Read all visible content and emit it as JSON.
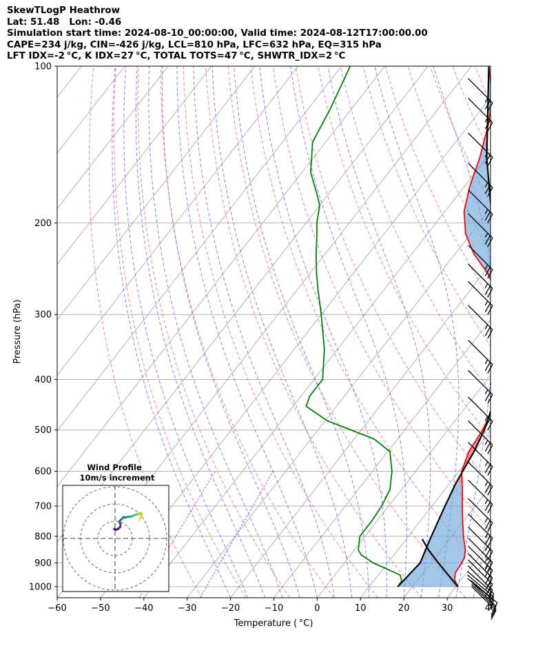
{
  "header": {
    "line1": "SkewTLogP Heathrow",
    "line2": "Lat: 51.48   Lon: -0.46",
    "line3": "Simulation start time: 2024-08-10_00:00:00, Valid time: 2024-08-12T17:00:00.00",
    "line4": "CAPE=234 j/kg, CIN=-426 j/kg, LCL=810 hPa, LFC=632 hPa, EQ=315 hPa",
    "line5": "LFT IDX=-2 °C, K IDX=27 °C, TOTAL TOTS=47 °C, SHWTR_IDX=2 °C"
  },
  "colors": {
    "temperature": "#ff0000",
    "dewpoint": "#008000",
    "parcel": "#000000",
    "cape_fill": "#e06666",
    "cin_fill": "#6fa8dc",
    "dry_adiabat": "#ff6666",
    "moist_adiabat": "#6666ff",
    "mixing_ratio": "#9933cc",
    "isotherm": "#aaaaaa",
    "grid": "#b0b0b0"
  },
  "chart_data": {
    "type": "skewt",
    "title": "SkewTLogP Heathrow",
    "xlabel": "Temperature ( °C)",
    "ylabel": "Pressure (hPa)",
    "xlim": [
      -60,
      40
    ],
    "ylim": [
      1050,
      100
    ],
    "xticks": [
      "−60",
      "−50",
      "−40",
      "−30",
      "−20",
      "−10",
      "0",
      "10",
      "20",
      "30",
      "40"
    ],
    "xtick_values": [
      -60,
      -50,
      -40,
      -30,
      -20,
      -10,
      0,
      10,
      20,
      30,
      40
    ],
    "yticks": [
      100,
      200,
      300,
      400,
      500,
      600,
      700,
      800,
      900,
      1000
    ],
    "temperature": {
      "name": "Temperature",
      "points": [
        [
          1000,
          30.5
        ],
        [
          970,
          28.5
        ],
        [
          940,
          27.4
        ],
        [
          910,
          27.2
        ],
        [
          880,
          26.8
        ],
        [
          850,
          25.6
        ],
        [
          800,
          22.7
        ],
        [
          750,
          19.9
        ],
        [
          700,
          17.0
        ],
        [
          650,
          14.0
        ],
        [
          600,
          10.6
        ],
        [
          550,
          8.7
        ],
        [
          500,
          8.0
        ],
        [
          450,
          6.5
        ],
        [
          400,
          3.5
        ],
        [
          350,
          -0.6
        ],
        [
          300,
          -7.0
        ],
        [
          270,
          -14.0
        ],
        [
          250,
          -19.0
        ],
        [
          230,
          -25.5
        ],
        [
          210,
          -31.2
        ],
        [
          190,
          -35.6
        ],
        [
          170,
          -38.8
        ],
        [
          150,
          -41.6
        ],
        [
          130,
          -45.5
        ],
        [
          115,
          -49.5
        ],
        [
          100,
          -56.0
        ]
      ]
    },
    "dewpoint": {
      "name": "Dewpoint",
      "points": [
        [
          1000,
          16.6
        ],
        [
          975,
          16.5
        ],
        [
          950,
          15.1
        ],
        [
          930,
          11.8
        ],
        [
          900,
          6.7
        ],
        [
          870,
          2.6
        ],
        [
          850,
          0.9
        ],
        [
          800,
          -1.2
        ],
        [
          750,
          -1.2
        ],
        [
          700,
          -1.6
        ],
        [
          650,
          -2.7
        ],
        [
          600,
          -5.5
        ],
        [
          550,
          -9.5
        ],
        [
          520,
          -15.5
        ],
        [
          480,
          -29.5
        ],
        [
          450,
          -37.0
        ],
        [
          430,
          -38.0
        ],
        [
          400,
          -38.0
        ],
        [
          350,
          -43.0
        ],
        [
          300,
          -50.0
        ],
        [
          270,
          -55.0
        ],
        [
          250,
          -58.5
        ],
        [
          230,
          -62.0
        ],
        [
          210,
          -65.5
        ],
        [
          200,
          -67.5
        ],
        [
          185,
          -70.0
        ],
        [
          175,
          -73.0
        ],
        [
          160,
          -78.0
        ],
        [
          140,
          -83.0
        ],
        [
          120,
          -85.0
        ],
        [
          100,
          -88.0
        ]
      ]
    },
    "parcel": {
      "name": "Parcel profile",
      "points": [
        [
          1000,
          16.6
        ],
        [
          900,
          17.5
        ],
        [
          810,
          15.5
        ],
        [
          700,
          13.0
        ],
        [
          632,
          11.4
        ],
        [
          550,
          9.9
        ],
        [
          500,
          8.4
        ],
        [
          450,
          6.0
        ],
        [
          400,
          2.6
        ],
        [
          350,
          -1.9
        ],
        [
          315,
          -5.5
        ],
        [
          300,
          -7.0
        ],
        [
          250,
          -16.0
        ],
        [
          200,
          -27.0
        ],
        [
          150,
          -40.0
        ],
        [
          100,
          -56.0
        ]
      ]
    },
    "parcel_dry": {
      "name": "Surface parcel dry ascent",
      "points": [
        [
          1000,
          30.5
        ],
        [
          950,
          26.2
        ],
        [
          900,
          21.7
        ],
        [
          850,
          17.1
        ],
        [
          810,
          13.7
        ]
      ]
    },
    "lcl_hpa": 810,
    "lfc_hpa": 632,
    "eq_hpa": 315,
    "wind_barbs": {
      "pressures": [
        1040,
        1030,
        1020,
        1010,
        1000,
        985,
        970,
        950,
        925,
        900,
        870,
        840,
        800,
        755,
        705,
        650,
        600,
        550,
        500,
        450,
        400,
        350,
        300,
        270,
        250,
        230,
        200,
        180,
        160,
        140,
        120,
        110
      ],
      "speed_kt": [
        10,
        10,
        10,
        10,
        15,
        15,
        15,
        20,
        20,
        20,
        25,
        25,
        25,
        25,
        25,
        25,
        25,
        25,
        25,
        25,
        25,
        25,
        25,
        25,
        25,
        25,
        25,
        25,
        25,
        25,
        25,
        25
      ],
      "direction_deg": [
        225,
        225,
        225,
        230,
        230,
        230,
        230,
        225,
        225,
        225,
        225,
        225,
        225,
        225,
        225,
        225,
        225,
        225,
        225,
        225,
        225,
        225,
        225,
        225,
        225,
        225,
        225,
        225,
        225,
        225,
        225,
        225
      ]
    },
    "hodograph": {
      "title": "Wind Profile",
      "subtitle": "10m/s increment",
      "ring_increment_ms": 10,
      "rings": [
        10,
        20,
        30
      ],
      "range_ms": 30,
      "points": [
        [
          -0.5,
          5.5
        ],
        [
          0.5,
          5.0
        ],
        [
          1.5,
          5.4
        ],
        [
          2.2,
          6.0
        ],
        [
          3.0,
          6.6
        ],
        [
          3.2,
          7.8
        ],
        [
          3.0,
          8.8
        ],
        [
          2.4,
          9.6
        ],
        [
          3.0,
          10.5
        ],
        [
          4.2,
          11.5
        ],
        [
          5.0,
          12.6
        ],
        [
          5.8,
          12.0
        ],
        [
          6.8,
          12.4
        ],
        [
          7.8,
          12.6
        ],
        [
          9.0,
          12.6
        ],
        [
          10.0,
          13.0
        ],
        [
          11.0,
          13.4
        ],
        [
          12.0,
          13.8
        ],
        [
          12.8,
          14.0
        ],
        [
          13.6,
          14.2
        ],
        [
          14.2,
          14.5
        ],
        [
          14.8,
          14.8
        ],
        [
          15.6,
          14.2
        ],
        [
          15.2,
          13.0
        ],
        [
          14.6,
          11.6
        ],
        [
          14.0,
          10.6
        ]
      ]
    }
  }
}
